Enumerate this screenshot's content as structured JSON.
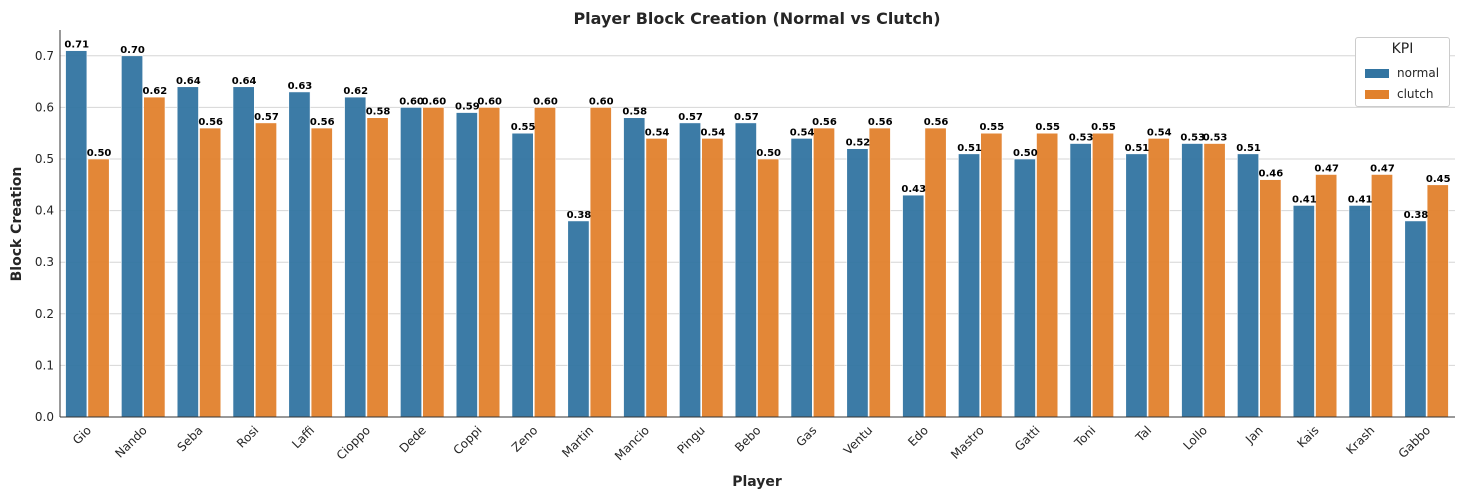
{
  "chart_data": {
    "type": "bar",
    "title": "Player Block Creation (Normal vs Clutch)",
    "xlabel": "Player",
    "ylabel": "Block Creation",
    "ylim": [
      0,
      0.75
    ],
    "yticks": [
      "0.0",
      "0.1",
      "0.2",
      "0.3",
      "0.4",
      "0.5",
      "0.6",
      "0.7"
    ],
    "grid": "horizontal",
    "legend_title": "KPI",
    "legend_position": "top-right",
    "categories": [
      "Gio",
      "Nando",
      "Seba",
      "Rosi",
      "Laffi",
      "Cioppo",
      "Dede",
      "Coppi",
      "Zeno",
      "Martin",
      "Mancio",
      "Pingu",
      "Bebo",
      "Gas",
      "Ventu",
      "Edo",
      "Mastro",
      "Gatti",
      "Toni",
      "Tal",
      "Lollo",
      "Jan",
      "Kais",
      "Krash",
      "Gabbo"
    ],
    "series": [
      {
        "name": "normal",
        "color": "#3274a1",
        "values": [
          0.71,
          0.7,
          0.64,
          0.64,
          0.63,
          0.62,
          0.6,
          0.59,
          0.55,
          0.38,
          0.58,
          0.57,
          0.57,
          0.54,
          0.52,
          0.43,
          0.51,
          0.5,
          0.53,
          0.51,
          0.53,
          0.51,
          0.41,
          0.41,
          0.38
        ]
      },
      {
        "name": "clutch",
        "color": "#e1812c",
        "values": [
          0.5,
          0.62,
          0.56,
          0.57,
          0.56,
          0.58,
          0.6,
          0.6,
          0.6,
          0.6,
          0.54,
          0.54,
          0.5,
          0.56,
          0.56,
          0.56,
          0.55,
          0.55,
          0.55,
          0.54,
          0.53,
          0.46,
          0.47,
          0.47,
          0.45
        ]
      }
    ]
  }
}
